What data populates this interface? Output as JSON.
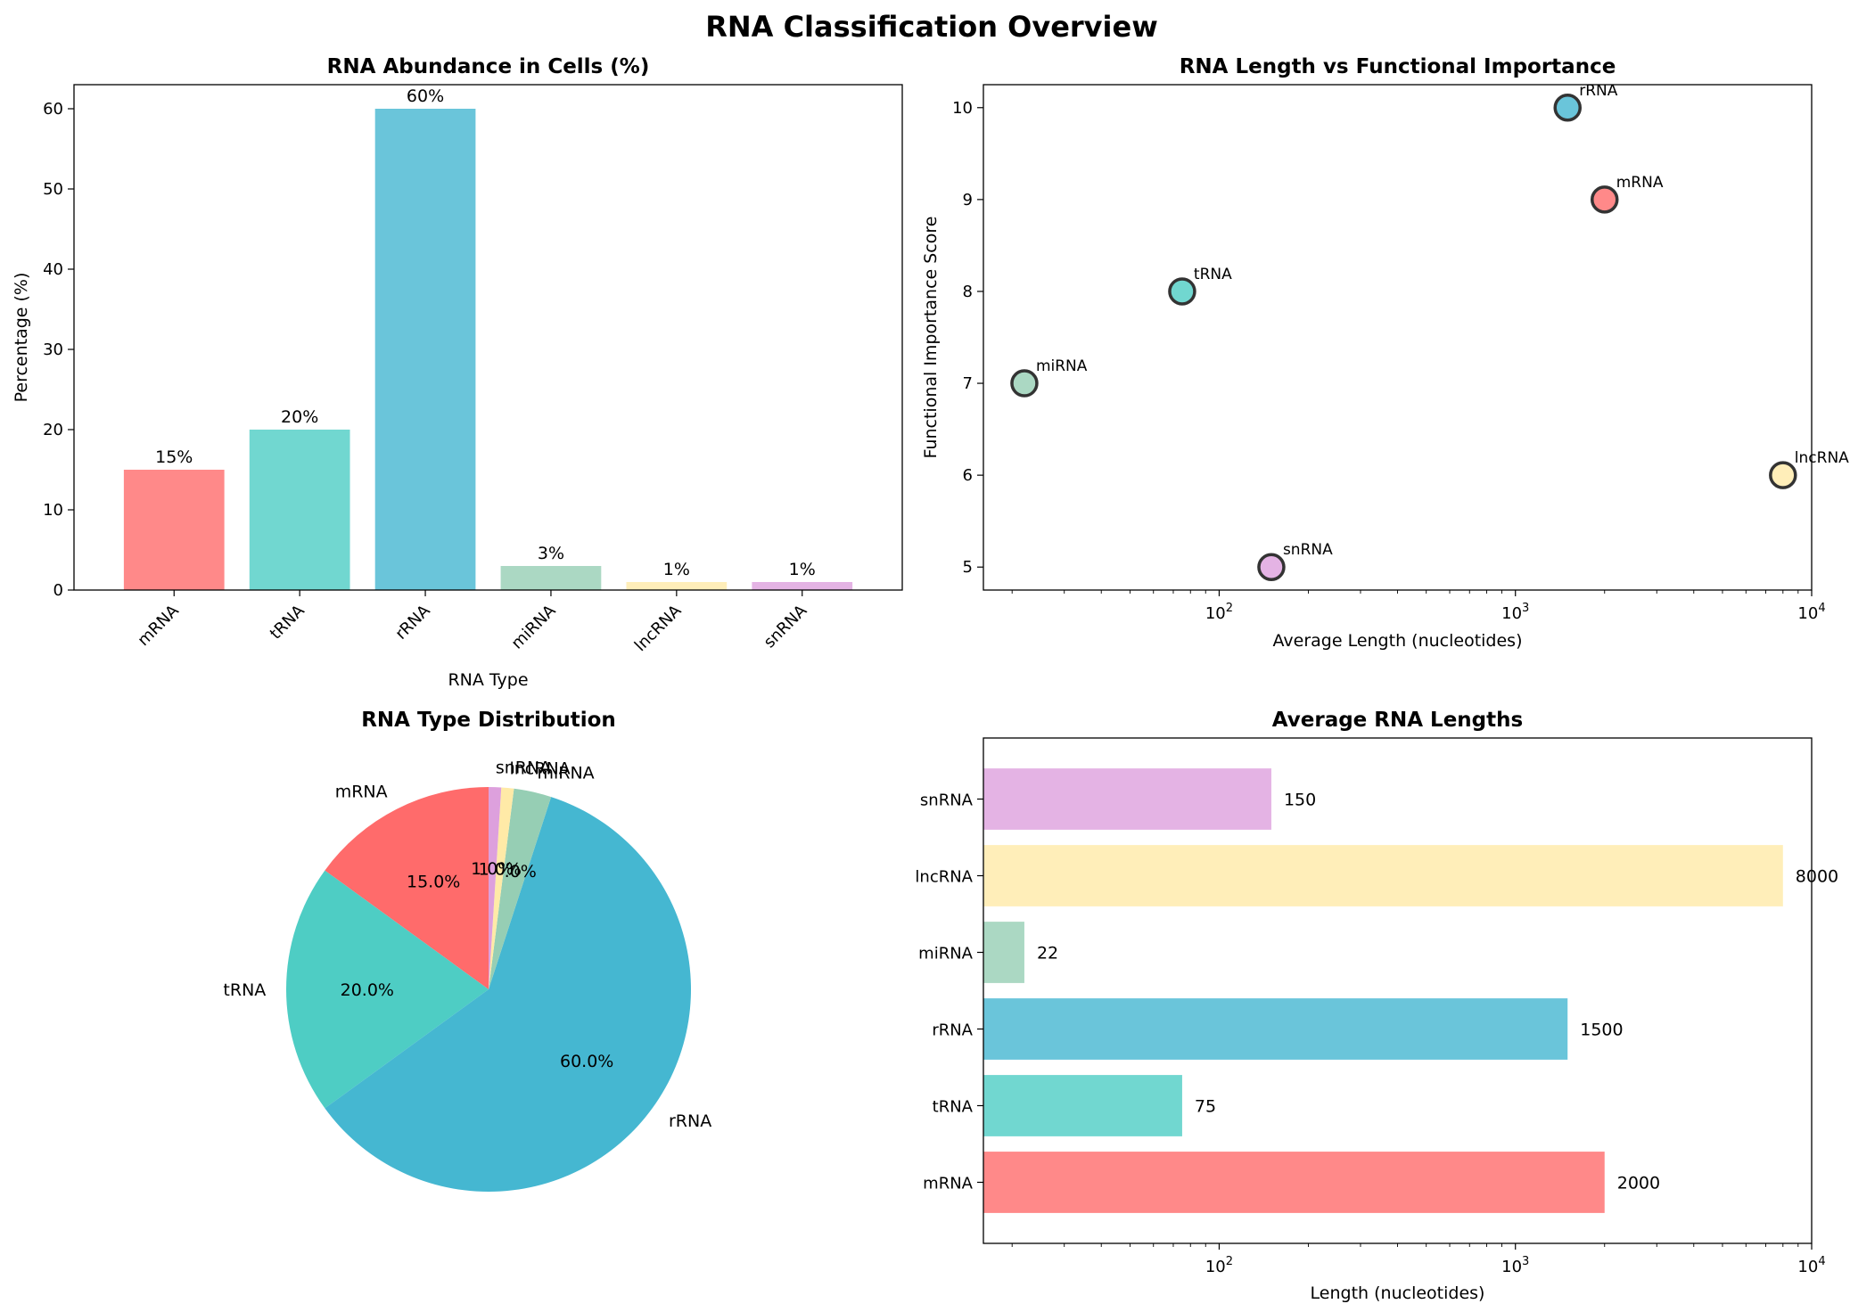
{
  "figure": {
    "title": "RNA Classification Overview"
  },
  "chart_data": [
    {
      "id": "abundance",
      "type": "bar",
      "title": "RNA Abundance in Cells (%)",
      "xlabel": "RNA Type",
      "ylabel": "Percentage (%)",
      "categories": [
        "mRNA",
        "tRNA",
        "rRNA",
        "miRNA",
        "lncRNA",
        "snRNA"
      ],
      "values": [
        15,
        20,
        60,
        3,
        1,
        1
      ],
      "value_labels": [
        "15%",
        "20%",
        "60%",
        "3%",
        "1%",
        "1%"
      ],
      "ylim": [
        0,
        63
      ],
      "yticks": [
        0,
        10,
        20,
        30,
        40,
        50,
        60
      ],
      "colors": [
        "#FF6B6B",
        "#4ECDC4",
        "#45B7D1",
        "#96CEB4",
        "#FFEAA7",
        "#DDA0DD"
      ]
    },
    {
      "id": "length_vs_importance",
      "type": "scatter",
      "title": "RNA Length vs Functional Importance",
      "xlabel": "Average Length (nucleotides)",
      "ylabel": "Functional Importance Score",
      "xscale": "log",
      "xlim": [
        16,
        10000
      ],
      "ylim": [
        4.75,
        10.25
      ],
      "yticks": [
        5,
        6,
        7,
        8,
        9,
        10
      ],
      "xticks": [
        {
          "value": 100,
          "base": "10",
          "exp": "2"
        },
        {
          "value": 1000,
          "base": "10",
          "exp": "3"
        },
        {
          "value": 10000,
          "base": "10",
          "exp": "4"
        }
      ],
      "points": [
        {
          "label": "mRNA",
          "x": 2000,
          "y": 9
        },
        {
          "label": "tRNA",
          "x": 75,
          "y": 8
        },
        {
          "label": "rRNA",
          "x": 1500,
          "y": 10
        },
        {
          "label": "miRNA",
          "x": 22,
          "y": 7
        },
        {
          "label": "lncRNA",
          "x": 8000,
          "y": 6
        },
        {
          "label": "snRNA",
          "x": 150,
          "y": 5
        }
      ],
      "colors": [
        "#FF6B6B",
        "#4ECDC4",
        "#45B7D1",
        "#96CEB4",
        "#FFEAA7",
        "#DDA0DD"
      ]
    },
    {
      "id": "distribution",
      "type": "pie",
      "title": "RNA Type Distribution",
      "labels": [
        "mRNA",
        "tRNA",
        "rRNA",
        "miRNA",
        "lncRNA",
        "snRNA"
      ],
      "values": [
        15,
        20,
        60,
        3,
        1,
        1
      ],
      "pct_labels": [
        "15.0%",
        "20.0%",
        "60.0%",
        "3.0%",
        "1.0%",
        "1.0%"
      ],
      "start_angle": 90,
      "colors": [
        "#FF6B6B",
        "#4ECDC4",
        "#45B7D1",
        "#96CEB4",
        "#FFEAA7",
        "#DDA0DD"
      ]
    },
    {
      "id": "lengths",
      "type": "bar",
      "orientation": "horizontal",
      "title": "Average RNA Lengths",
      "xlabel": "Length (nucleotides)",
      "xscale": "log",
      "xlim": [
        16,
        10000
      ],
      "xticks": [
        {
          "value": 100,
          "base": "10",
          "exp": "2"
        },
        {
          "value": 1000,
          "base": "10",
          "exp": "3"
        },
        {
          "value": 10000,
          "base": "10",
          "exp": "4"
        }
      ],
      "categories": [
        "mRNA",
        "tRNA",
        "rRNA",
        "miRNA",
        "lncRNA",
        "snRNA"
      ],
      "values": [
        2000,
        75,
        1500,
        22,
        8000,
        150
      ],
      "value_labels": [
        "2000",
        "75",
        "1500",
        "22",
        "8000",
        "150"
      ],
      "colors": [
        "#FF6B6B",
        "#4ECDC4",
        "#45B7D1",
        "#96CEB4",
        "#FFEAA7",
        "#DDA0DD"
      ]
    }
  ]
}
